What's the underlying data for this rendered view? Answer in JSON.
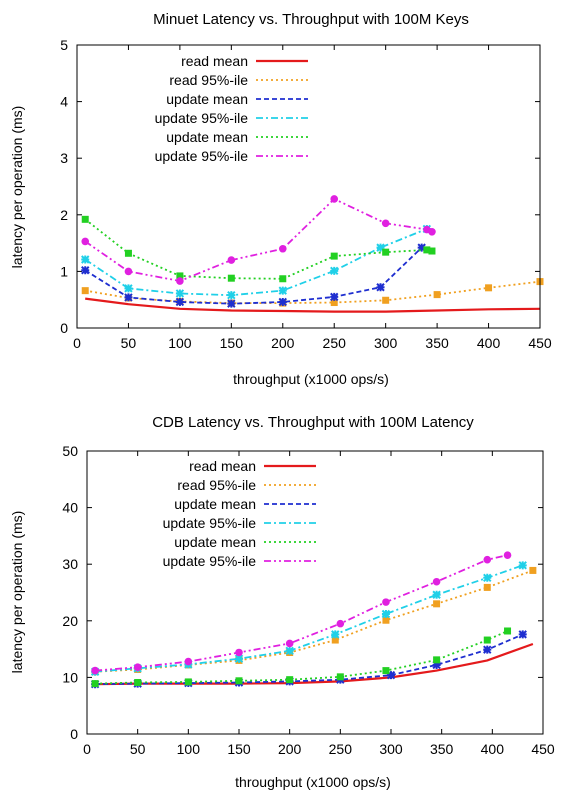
{
  "chart_data": [
    {
      "type": "line",
      "title": "Minuet Latency vs. Throughput with 100M Keys",
      "xlabel": "throughput (x1000 ops/s)",
      "ylabel": "latency per operation (ms)",
      "xlim": [
        0,
        450
      ],
      "ylim": [
        0,
        5
      ],
      "xticks": [
        0,
        50,
        100,
        150,
        200,
        250,
        300,
        350,
        400,
        450
      ],
      "yticks": [
        0,
        1,
        2,
        3,
        4,
        5
      ],
      "legend_position": "top-right",
      "grid": false,
      "series": [
        {
          "name": "read mean",
          "color": "#e41a1c",
          "dash": "solid",
          "marker": "none",
          "x": [
            8,
            50,
            100,
            150,
            200,
            250,
            300,
            350,
            400,
            450
          ],
          "y": [
            0.52,
            0.42,
            0.34,
            0.31,
            0.3,
            0.29,
            0.29,
            0.31,
            0.33,
            0.34
          ]
        },
        {
          "name": "read 95%-ile",
          "color": "#f0a020",
          "dash": "dot",
          "marker": "square",
          "x": [
            8,
            50,
            100,
            150,
            200,
            250,
            300,
            350,
            400,
            450
          ],
          "y": [
            0.66,
            0.53,
            0.47,
            0.44,
            0.44,
            0.45,
            0.49,
            0.59,
            0.71,
            0.82
          ]
        },
        {
          "name": "update mean",
          "color": "#1f2fd0",
          "dash": "dash",
          "marker": "x",
          "x": [
            8,
            50,
            100,
            150,
            200,
            250,
            295,
            335
          ],
          "y": [
            1.02,
            0.54,
            0.46,
            0.43,
            0.46,
            0.55,
            0.72,
            1.42
          ]
        },
        {
          "name": "update 95%-ile",
          "color": "#20d0e8",
          "dash": "dashdot",
          "marker": "x",
          "x": [
            8,
            50,
            100,
            150,
            200,
            250,
            295,
            340
          ],
          "y": [
            1.21,
            0.7,
            0.61,
            0.58,
            0.66,
            1.01,
            1.42,
            1.75
          ]
        },
        {
          "name": "update mean",
          "color": "#22d022",
          "dash": "dot",
          "marker": "square",
          "x": [
            8,
            50,
            100,
            150,
            200,
            250,
            300,
            340,
            345
          ],
          "y": [
            1.92,
            1.32,
            0.92,
            0.88,
            0.87,
            1.27,
            1.34,
            1.38,
            1.36
          ]
        },
        {
          "name": "update 95%-ile",
          "color": "#e020e0",
          "dash": "dashdotdot",
          "marker": "circle",
          "x": [
            8,
            50,
            100,
            150,
            200,
            250,
            300,
            340,
            345
          ],
          "y": [
            1.53,
            1.0,
            0.83,
            1.2,
            1.4,
            2.28,
            1.85,
            1.74,
            1.7
          ]
        }
      ]
    },
    {
      "type": "line",
      "title": "CDB Latency vs. Throughput with 100M Latency",
      "xlabel": "throughput (x1000 ops/s)",
      "ylabel": "latency per operation (ms)",
      "xlim": [
        0,
        450
      ],
      "ylim": [
        0,
        50
      ],
      "xticks": [
        0,
        50,
        100,
        150,
        200,
        250,
        300,
        350,
        400,
        450
      ],
      "yticks": [
        0,
        10,
        20,
        30,
        40,
        50
      ],
      "legend_position": "top-left",
      "grid": false,
      "series": [
        {
          "name": "read mean",
          "color": "#e41a1c",
          "dash": "solid",
          "marker": "none",
          "x": [
            8,
            50,
            100,
            150,
            200,
            250,
            300,
            345,
            395,
            440
          ],
          "y": [
            8.8,
            8.9,
            8.9,
            8.9,
            9.0,
            9.3,
            10.0,
            11.2,
            13.0,
            15.9
          ]
        },
        {
          "name": "read 95%-ile",
          "color": "#f0a020",
          "dash": "dot",
          "marker": "square",
          "x": [
            8,
            50,
            100,
            150,
            200,
            245,
            295,
            345,
            395,
            440
          ],
          "y": [
            11.0,
            11.4,
            12.2,
            13.0,
            14.4,
            16.6,
            20.1,
            23.0,
            25.9,
            28.9
          ]
        },
        {
          "name": "update mean",
          "color": "#1f2fd0",
          "dash": "dash",
          "marker": "x",
          "x": [
            8,
            50,
            100,
            150,
            200,
            250,
            300,
            345,
            395,
            430
          ],
          "y": [
            8.8,
            8.9,
            9.0,
            9.1,
            9.3,
            9.6,
            10.4,
            12.2,
            14.9,
            17.6
          ]
        },
        {
          "name": "update 95%-ile",
          "color": "#20d0e8",
          "dash": "dashdot",
          "marker": "x",
          "x": [
            8,
            50,
            100,
            150,
            200,
            245,
            295,
            345,
            395,
            430
          ],
          "y": [
            11.0,
            11.6,
            12.3,
            13.3,
            14.7,
            17.6,
            21.2,
            24.6,
            27.6,
            29.8
          ]
        },
        {
          "name": "update mean",
          "color": "#22d022",
          "dash": "dot",
          "marker": "square",
          "x": [
            8,
            50,
            100,
            150,
            200,
            250,
            295,
            345,
            395,
            415
          ],
          "y": [
            8.9,
            9.1,
            9.2,
            9.4,
            9.6,
            10.1,
            11.2,
            13.1,
            16.6,
            18.2
          ]
        },
        {
          "name": "update 95%-ile",
          "color": "#e020e0",
          "dash": "dashdotdot",
          "marker": "circle",
          "x": [
            8,
            50,
            100,
            150,
            200,
            250,
            295,
            345,
            395,
            415
          ],
          "y": [
            11.2,
            11.8,
            12.8,
            14.4,
            16.0,
            19.5,
            23.3,
            26.9,
            30.8,
            31.6
          ]
        }
      ]
    }
  ]
}
